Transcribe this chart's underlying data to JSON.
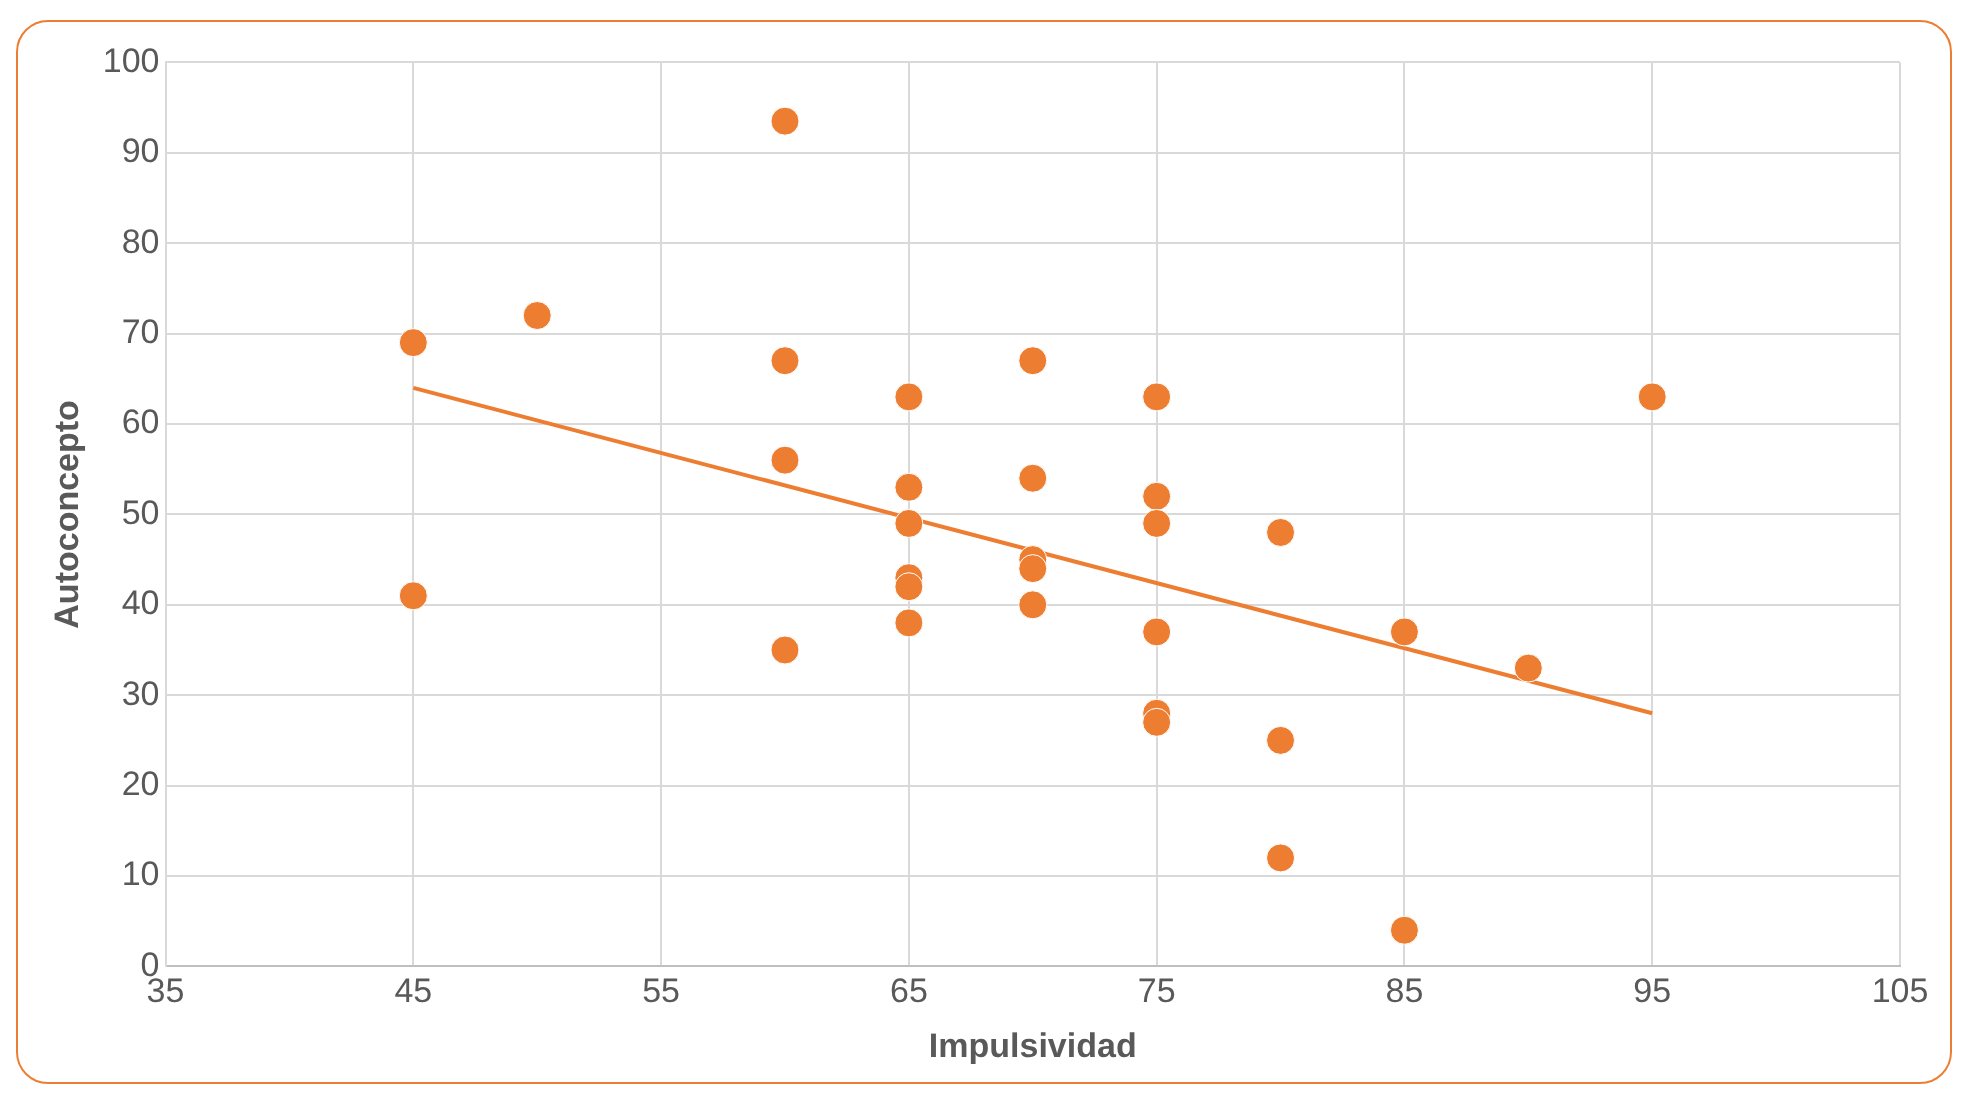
{
  "chart_data": {
    "type": "scatter",
    "xlabel": "Impulsividad",
    "ylabel": "Autoconcepto",
    "xlim": [
      35,
      105
    ],
    "xticks": [
      35,
      45,
      55,
      65,
      75,
      85,
      95,
      105
    ],
    "ylim": [
      0,
      100
    ],
    "yticks": [
      0,
      10,
      20,
      30,
      40,
      50,
      60,
      70,
      80,
      90,
      100
    ],
    "grid": true,
    "legend": false,
    "series": [
      {
        "color": "#ed7d31",
        "marker": "circle",
        "x": [
          45,
          45,
          50,
          60,
          60,
          60,
          60,
          65,
          65,
          65,
          65,
          65,
          65,
          70,
          70,
          70,
          70,
          70,
          75,
          75,
          75,
          75,
          75,
          75,
          80,
          80,
          80,
          85,
          85,
          90,
          95
        ],
        "values": [
          69,
          41,
          72,
          93.5,
          67,
          56,
          35,
          63,
          53,
          49,
          43,
          42,
          38,
          67,
          54,
          45,
          44,
          40,
          63,
          52,
          49,
          37,
          28,
          27,
          48,
          25,
          12,
          37,
          4,
          33,
          63
        ]
      },
      {
        "type": "line",
        "color": "#ed7d31",
        "x": [
          45,
          95
        ],
        "values": [
          64,
          28
        ]
      }
    ]
  }
}
